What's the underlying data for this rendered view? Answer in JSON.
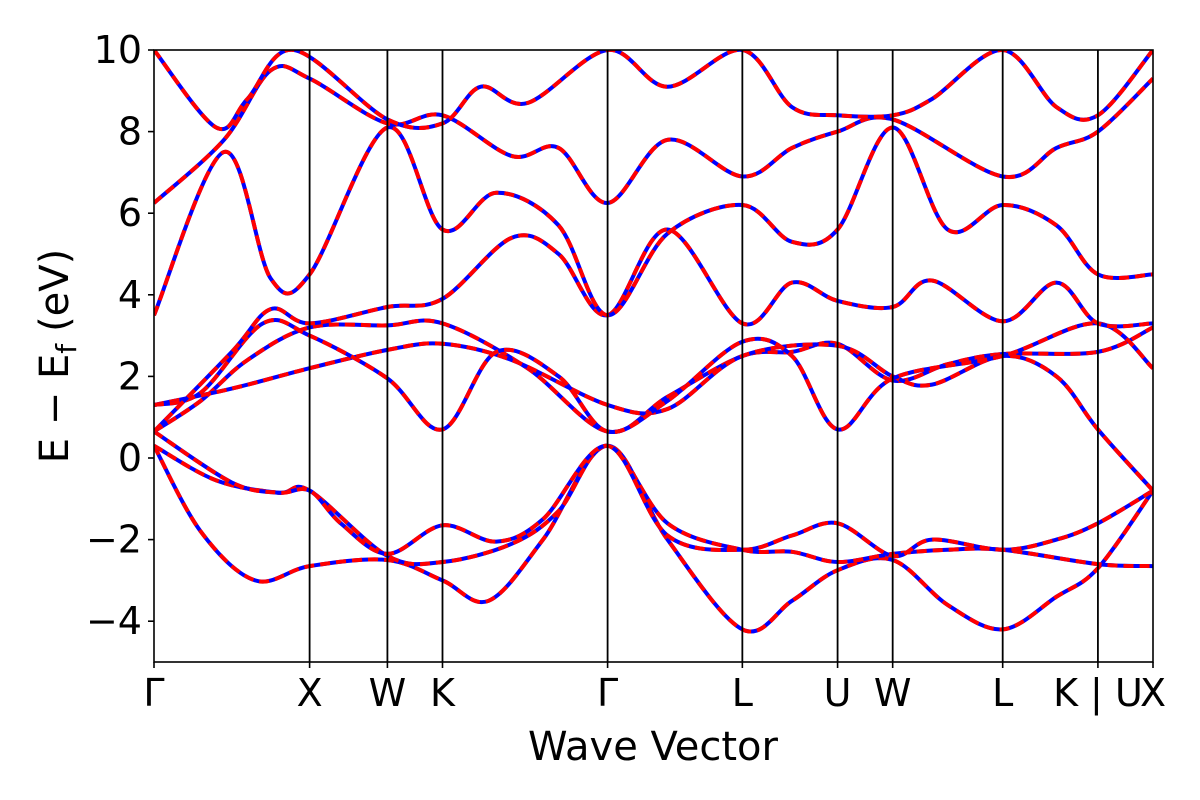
{
  "chart_data": {
    "type": "line",
    "title": "",
    "xlabel": "Wave Vector",
    "ylabel": "E − E",
    "ylabel_subscript": "f",
    "ylabel_unit": "(eV)",
    "ylim": [
      -5,
      10
    ],
    "yticks": [
      "10",
      "8",
      "6",
      "4",
      "2",
      "0",
      "−2",
      "−4"
    ],
    "ytick_values": [
      10,
      8,
      6,
      4,
      2,
      0,
      -2,
      -4
    ],
    "kpoints": [
      {
        "label": "Γ",
        "x": 0.0
      },
      {
        "label": "X",
        "x": 1.0
      },
      {
        "label": "W",
        "x": 1.5
      },
      {
        "label": "K",
        "x": 1.854
      },
      {
        "label": "Γ",
        "x": 2.915
      },
      {
        "label": "L",
        "x": 3.781
      },
      {
        "label": "U",
        "x": 4.393
      },
      {
        "label": "W",
        "x": 4.747
      },
      {
        "label": "L",
        "x": 5.454
      },
      {
        "label": "K | U",
        "x": 6.066
      },
      {
        "label": "X",
        "x": 6.42
      }
    ],
    "colors": {
      "overlay": "#ff0000",
      "base": "#0000ff"
    },
    "series": [
      {
        "values": [
          [
            0,
            0.3
          ],
          [
            0.3,
            -1.8
          ],
          [
            0.65,
            -3.0
          ],
          [
            1.0,
            -2.65
          ],
          [
            1.5,
            -2.5
          ],
          [
            1.854,
            -3.0
          ],
          [
            2.15,
            -3.5
          ],
          [
            2.5,
            -2.0
          ],
          [
            2.915,
            0.3
          ],
          [
            3.3,
            -2.0
          ],
          [
            3.781,
            -4.2
          ],
          [
            4.1,
            -3.5
          ],
          [
            4.393,
            -2.75
          ],
          [
            4.747,
            -2.5
          ],
          [
            5.1,
            -3.6
          ],
          [
            5.454,
            -4.2
          ],
          [
            5.8,
            -3.4
          ],
          [
            6.066,
            -2.7
          ],
          [
            6.42,
            -0.8
          ]
        ]
      },
      {
        "values": [
          [
            0,
            0.3
          ],
          [
            0.4,
            -0.55
          ],
          [
            0.8,
            -0.85
          ],
          [
            1.0,
            -0.8
          ],
          [
            1.5,
            -2.4
          ],
          [
            1.854,
            -2.55
          ],
          [
            2.3,
            -2.1
          ],
          [
            2.6,
            -1.3
          ],
          [
            2.915,
            0.3
          ],
          [
            3.3,
            -1.6
          ],
          [
            3.781,
            -2.25
          ],
          [
            4.1,
            -2.3
          ],
          [
            4.393,
            -2.55
          ],
          [
            4.747,
            -2.35
          ],
          [
            5.1,
            -2.25
          ],
          [
            5.454,
            -2.25
          ],
          [
            6.066,
            -2.6
          ],
          [
            6.42,
            -2.65
          ]
        ]
      },
      {
        "values": [
          [
            0,
            0.65
          ],
          [
            0.5,
            -0.6
          ],
          [
            0.8,
            -0.85
          ],
          [
            1.0,
            -0.8
          ],
          [
            1.2,
            -1.6
          ],
          [
            1.5,
            -2.35
          ],
          [
            1.854,
            -1.65
          ],
          [
            2.2,
            -2.05
          ],
          [
            2.5,
            -1.5
          ],
          [
            2.915,
            0.3
          ],
          [
            3.3,
            -1.9
          ],
          [
            3.781,
            -2.25
          ],
          [
            4.1,
            -1.9
          ],
          [
            4.393,
            -1.6
          ],
          [
            4.747,
            -2.4
          ],
          [
            5.0,
            -2.0
          ],
          [
            5.454,
            -2.25
          ],
          [
            5.8,
            -2.0
          ],
          [
            6.066,
            -1.6
          ],
          [
            6.42,
            -0.8
          ]
        ]
      },
      {
        "values": [
          [
            0,
            0.65
          ],
          [
            0.3,
            1.4
          ],
          [
            0.6,
            2.4
          ],
          [
            1.0,
            3.2
          ],
          [
            1.5,
            3.25
          ],
          [
            1.854,
            3.3
          ],
          [
            2.4,
            2.2
          ],
          [
            2.915,
            0.65
          ],
          [
            3.3,
            1.5
          ],
          [
            3.781,
            2.5
          ],
          [
            4.1,
            2.6
          ],
          [
            4.393,
            2.8
          ],
          [
            4.747,
            1.9
          ],
          [
            5.1,
            2.3
          ],
          [
            5.454,
            2.55
          ],
          [
            6.066,
            2.6
          ],
          [
            6.42,
            3.2
          ]
        ]
      },
      {
        "values": [
          [
            0,
            1.3
          ],
          [
            0.5,
            1.7
          ],
          [
            1.0,
            2.2
          ],
          [
            1.5,
            2.65
          ],
          [
            1.854,
            2.8
          ],
          [
            2.3,
            2.4
          ],
          [
            2.915,
            1.3
          ],
          [
            3.3,
            1.2
          ],
          [
            3.781,
            2.5
          ],
          [
            4.393,
            2.75
          ],
          [
            4.747,
            2.0
          ],
          [
            5.0,
            1.8
          ],
          [
            5.454,
            2.5
          ],
          [
            5.8,
            2.0
          ],
          [
            6.066,
            0.7
          ],
          [
            6.42,
            -0.8
          ]
        ]
      },
      {
        "values": [
          [
            0,
            1.3
          ],
          [
            0.3,
            1.6
          ],
          [
            0.7,
            3.3
          ],
          [
            1.0,
            3.0
          ],
          [
            1.5,
            1.95
          ],
          [
            1.854,
            0.7
          ],
          [
            2.2,
            2.6
          ],
          [
            2.6,
            2.0
          ],
          [
            2.915,
            0.65
          ],
          [
            3.3,
            1.4
          ],
          [
            3.781,
            2.85
          ],
          [
            4.1,
            2.5
          ],
          [
            4.393,
            0.7
          ],
          [
            4.747,
            1.95
          ],
          [
            5.454,
            2.5
          ],
          [
            6.066,
            3.3
          ],
          [
            6.42,
            2.2
          ]
        ]
      },
      {
        "values": [
          [
            0,
            0.65
          ],
          [
            0.5,
            2.6
          ],
          [
            0.75,
            3.65
          ],
          [
            1.0,
            3.3
          ],
          [
            1.5,
            3.7
          ],
          [
            1.854,
            3.9
          ],
          [
            2.3,
            5.4
          ],
          [
            2.6,
            5.0
          ],
          [
            2.915,
            3.5
          ],
          [
            3.3,
            5.6
          ],
          [
            3.781,
            3.3
          ],
          [
            4.1,
            4.3
          ],
          [
            4.393,
            3.85
          ],
          [
            4.747,
            3.7
          ],
          [
            5.0,
            4.35
          ],
          [
            5.454,
            3.35
          ],
          [
            5.8,
            4.3
          ],
          [
            6.066,
            3.3
          ],
          [
            6.42,
            3.3
          ]
        ]
      },
      {
        "values": [
          [
            0,
            3.5
          ],
          [
            0.45,
            7.5
          ],
          [
            0.75,
            4.4
          ],
          [
            1.0,
            4.5
          ],
          [
            1.5,
            8.1
          ],
          [
            1.854,
            5.6
          ],
          [
            2.2,
            6.5
          ],
          [
            2.6,
            5.7
          ],
          [
            2.915,
            3.5
          ],
          [
            3.3,
            5.5
          ],
          [
            3.781,
            6.2
          ],
          [
            4.1,
            5.3
          ],
          [
            4.393,
            5.6
          ],
          [
            4.747,
            8.1
          ],
          [
            5.1,
            5.6
          ],
          [
            5.454,
            6.2
          ],
          [
            5.8,
            5.7
          ],
          [
            6.066,
            4.5
          ],
          [
            6.42,
            4.5
          ]
        ]
      },
      {
        "values": [
          [
            0,
            6.25
          ],
          [
            0.45,
            7.8
          ],
          [
            0.75,
            9.5
          ],
          [
            1.0,
            9.3
          ],
          [
            1.5,
            8.2
          ],
          [
            1.854,
            8.4
          ],
          [
            2.3,
            7.4
          ],
          [
            2.6,
            7.6
          ],
          [
            2.915,
            6.25
          ],
          [
            3.3,
            7.8
          ],
          [
            3.781,
            6.9
          ],
          [
            4.1,
            7.6
          ],
          [
            4.393,
            8.0
          ],
          [
            4.747,
            8.3
          ],
          [
            5.454,
            6.9
          ],
          [
            5.8,
            7.6
          ],
          [
            6.066,
            8.0
          ],
          [
            6.42,
            9.3
          ]
        ]
      },
      {
        "values": [
          [
            0,
            10.0
          ],
          [
            0.4,
            8.1
          ],
          [
            0.6,
            8.8
          ],
          [
            0.9,
            10.0
          ],
          [
            1.5,
            8.3
          ],
          [
            1.854,
            8.2
          ],
          [
            2.1,
            9.1
          ],
          [
            2.4,
            8.7
          ],
          [
            2.915,
            10.0
          ],
          [
            3.3,
            9.1
          ],
          [
            3.781,
            10.0
          ],
          [
            4.1,
            8.6
          ],
          [
            4.393,
            8.4
          ],
          [
            4.747,
            8.4
          ],
          [
            5.0,
            8.8
          ],
          [
            5.454,
            10.0
          ],
          [
            5.8,
            8.6
          ],
          [
            6.066,
            8.4
          ],
          [
            6.42,
            10.0
          ]
        ]
      }
    ]
  }
}
